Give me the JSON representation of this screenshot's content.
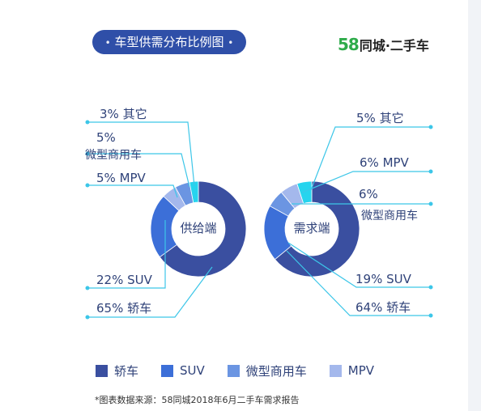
{
  "title": "车型供需分布比例图",
  "title_dot": "•",
  "brand": {
    "logo_number": "58",
    "text": "同城·二手车"
  },
  "chart_data": [
    {
      "type": "pie",
      "center_label": "供给端",
      "categories": [
        "轿车",
        "SUV",
        "MPV",
        "微型商用车",
        "其它"
      ],
      "values": [
        65,
        22,
        5,
        5,
        3
      ],
      "labels": {
        "other": "3% 其它",
        "micro_pct": "5%",
        "micro_name": "微型商用车",
        "mpv": "5% MPV",
        "suv": "22% SUV",
        "sedan": "65% 轿车"
      }
    },
    {
      "type": "pie",
      "center_label": "需求端",
      "categories": [
        "轿车",
        "SUV",
        "微型商用车",
        "MPV",
        "其它"
      ],
      "values": [
        64,
        19,
        6,
        6,
        5
      ],
      "labels": {
        "other": "5% 其它",
        "mpv": "6% MPV",
        "micro_pct": "6%",
        "micro_name": "微型商用车",
        "suv": "19% SUV",
        "sedan": "64% 轿车"
      }
    }
  ],
  "colors": {
    "轿车": "#3a4fa0",
    "SUV": "#3c6fd8",
    "微型商用车": "#6b95e2",
    "MPV": "#a4b8ec",
    "其它": "#26d4ee",
    "leader": "#3cc6e8",
    "title_bg": "#2f4fa8",
    "text": "#2f4279"
  },
  "legend": [
    {
      "label": "轿车",
      "color": "#3a4fa0"
    },
    {
      "label": "SUV",
      "color": "#3c6fd8"
    },
    {
      "label": "微型商用车",
      "color": "#6b95e2"
    },
    {
      "label": "MPV",
      "color": "#a4b8ec"
    }
  ],
  "source": "*图表数据来源：58同城2018年6月二手车需求报告"
}
